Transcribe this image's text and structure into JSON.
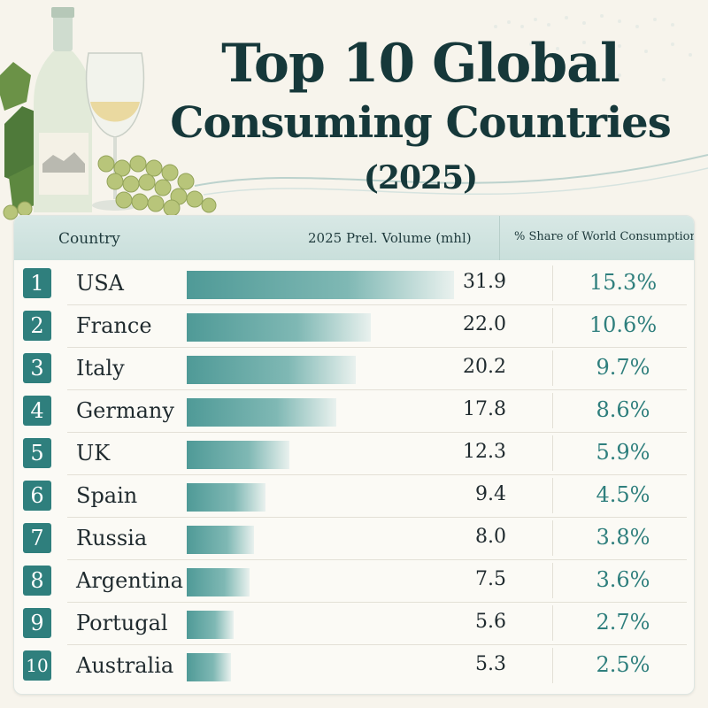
{
  "title": {
    "line1": "Top 10 Global",
    "line2": "Consuming Countries",
    "year": "(2025)"
  },
  "headers": {
    "country": "Country",
    "volume": "2025 Prel. Volume (mhl)",
    "share": "% Share of World Consumption"
  },
  "chart_data": {
    "type": "bar",
    "orientation": "horizontal",
    "title": "Top 10 Global Consuming Countries (2025)",
    "categories": [
      "USA",
      "France",
      "Italy",
      "Germany",
      "UK",
      "Spain",
      "Russia",
      "Argentina",
      "Portugal",
      "Australia"
    ],
    "ranks": [
      "1",
      "2",
      "3",
      "4",
      "5",
      "6",
      "7",
      "8",
      "9",
      "10"
    ],
    "series": [
      {
        "name": "2025 Prel. Volume (mhl)",
        "values": [
          31.9,
          22.0,
          20.2,
          17.8,
          12.3,
          9.4,
          8.0,
          7.5,
          5.6,
          5.3
        ]
      },
      {
        "name": "% Share of World Consumption",
        "values": [
          15.3,
          10.6,
          9.7,
          8.6,
          5.9,
          4.5,
          3.8,
          3.6,
          2.7,
          2.5
        ]
      }
    ],
    "volume_labels": [
      "31.9",
      "22.0",
      "20.2",
      "17.8",
      "12.3",
      "9.4",
      "8.0",
      "7.5",
      "5.6",
      "5.3"
    ],
    "share_labels": [
      "15.3%",
      "10.6%",
      "9.7%",
      "8.6%",
      "5.9%",
      "4.5%",
      "3.8%",
      "3.6%",
      "2.7%",
      "2.5%"
    ],
    "colors": {
      "bar": "#4f9a97",
      "rank_badge": "#2f7f7d",
      "share_text": "#2f7f7d"
    }
  }
}
